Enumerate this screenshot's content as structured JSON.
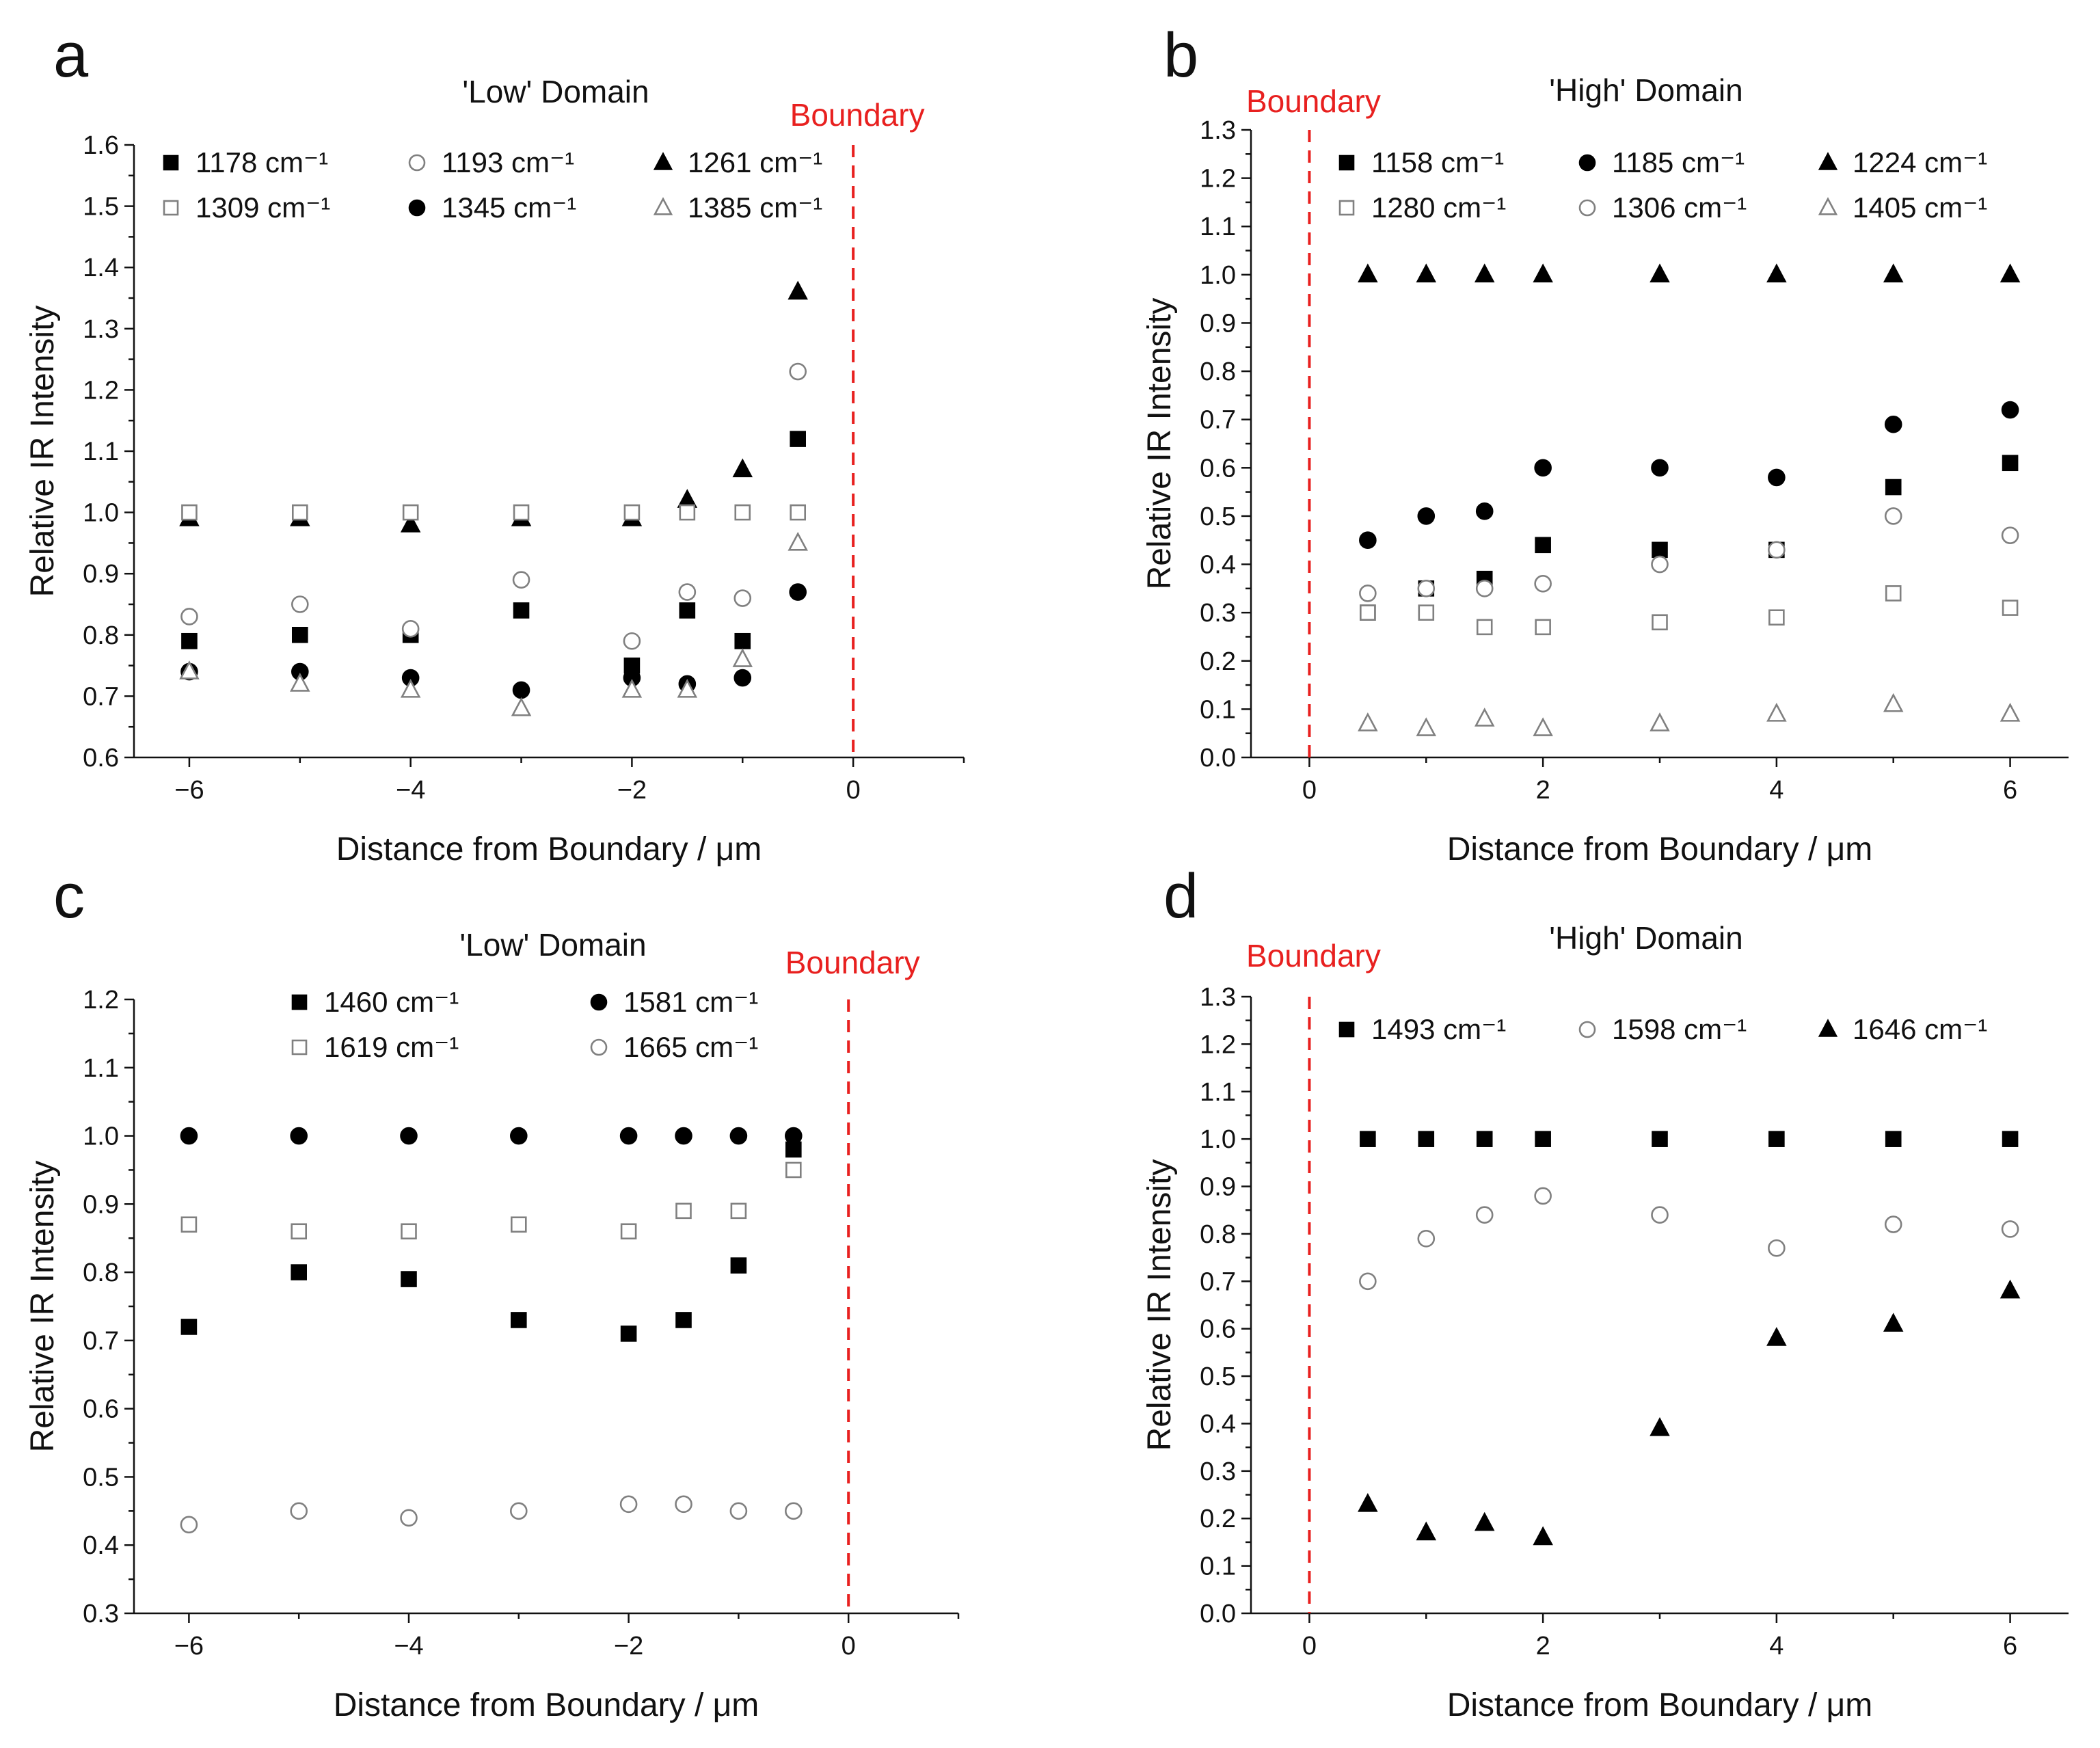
{
  "figure": {
    "colors": {
      "boundary": "#e8201f",
      "filled": "#000000",
      "open": "#808080"
    }
  },
  "chart_data": [
    {
      "type": "scatter",
      "panel": "a",
      "title": "'Low' Domain",
      "boundary_label": "Boundary",
      "boundary_x": 0,
      "xlabel": "Distance from Boundary / μm",
      "ylabel": "Relative IR Intensity",
      "xlim": [
        -6.5,
        1
      ],
      "ylim": [
        0.6,
        1.6
      ],
      "xticks": [
        -6,
        -4,
        -2,
        0
      ],
      "xtick_labels": [
        "−6",
        "−4",
        "−2",
        "0"
      ],
      "xminor_step": 1,
      "yticks": [
        0.6,
        0.7,
        0.8,
        0.9,
        1.0,
        1.1,
        1.2,
        1.3,
        1.4,
        1.5,
        1.6
      ],
      "ytick_labels": [
        "0.6",
        "0.7",
        "0.8",
        "0.9",
        "1.0",
        "1.1",
        "1.2",
        "1.3",
        "1.4",
        "1.5",
        "1.6"
      ],
      "legend_columns": 3,
      "series": [
        {
          "name": "1178 cm⁻¹",
          "marker": "square",
          "fill": "filled",
          "x": [
            -6,
            -5,
            -4,
            -3,
            -2,
            -1.5,
            -1,
            -0.5
          ],
          "y": [
            0.79,
            0.8,
            0.8,
            0.84,
            0.75,
            0.84,
            0.79,
            1.12
          ]
        },
        {
          "name": "1193 cm⁻¹",
          "marker": "circle",
          "fill": "open",
          "x": [
            -6,
            -5,
            -4,
            -3,
            -2,
            -1.5,
            -1,
            -0.5
          ],
          "y": [
            0.83,
            0.85,
            0.81,
            0.89,
            0.79,
            0.87,
            0.86,
            1.23
          ]
        },
        {
          "name": "1261 cm⁻¹",
          "marker": "triangle",
          "fill": "filled",
          "x": [
            -6,
            -5,
            -4,
            -3,
            -2,
            -1.5,
            -1,
            -0.5
          ],
          "y": [
            0.99,
            0.99,
            0.98,
            0.99,
            0.99,
            1.02,
            1.07,
            1.36
          ]
        },
        {
          "name": "1309 cm⁻¹",
          "marker": "square",
          "fill": "open",
          "x": [
            -6,
            -5,
            -4,
            -3,
            -2,
            -1.5,
            -1,
            -0.5
          ],
          "y": [
            1.0,
            1.0,
            1.0,
            1.0,
            1.0,
            1.0,
            1.0,
            1.0
          ]
        },
        {
          "name": "1345 cm⁻¹",
          "marker": "circle",
          "fill": "filled",
          "x": [
            -6,
            -5,
            -4,
            -3,
            -2,
            -1.5,
            -1,
            -0.5
          ],
          "y": [
            0.74,
            0.74,
            0.73,
            0.71,
            0.73,
            0.72,
            0.73,
            0.87
          ]
        },
        {
          "name": "1385 cm⁻¹",
          "marker": "triangle",
          "fill": "open",
          "x": [
            -6,
            -5,
            -4,
            -3,
            -2,
            -1.5,
            -1,
            -0.5
          ],
          "y": [
            0.74,
            0.72,
            0.71,
            0.68,
            0.71,
            0.71,
            0.76,
            0.95
          ]
        }
      ]
    },
    {
      "type": "scatter",
      "panel": "b",
      "title": "'High' Domain",
      "boundary_label": "Boundary",
      "boundary_x": 0,
      "xlabel": "Distance from Boundary / μm",
      "ylabel": "Relative IR Intensity",
      "xlim": [
        -0.5,
        6.5
      ],
      "ylim": [
        0.0,
        1.3
      ],
      "xticks": [
        0,
        2,
        4,
        6
      ],
      "xtick_labels": [
        "0",
        "2",
        "4",
        "6"
      ],
      "xminor_step": 1,
      "yticks": [
        0.0,
        0.1,
        0.2,
        0.3,
        0.4,
        0.5,
        0.6,
        0.7,
        0.8,
        0.9,
        1.0,
        1.1,
        1.2,
        1.3
      ],
      "ytick_labels": [
        "0.0",
        "0.1",
        "0.2",
        "0.3",
        "0.4",
        "0.5",
        "0.6",
        "0.7",
        "0.8",
        "0.9",
        "1.0",
        "1.1",
        "1.2",
        "1.3"
      ],
      "legend_columns": 3,
      "series": [
        {
          "name": "1158 cm⁻¹",
          "marker": "square",
          "fill": "filled",
          "x": [
            0.5,
            1,
            1.5,
            2,
            3,
            4,
            5,
            6
          ],
          "y": [
            0.3,
            0.35,
            0.37,
            0.44,
            0.43,
            0.43,
            0.56,
            0.61
          ]
        },
        {
          "name": "1185 cm⁻¹",
          "marker": "circle",
          "fill": "filled",
          "x": [
            0.5,
            1,
            1.5,
            2,
            3,
            4,
            5,
            6
          ],
          "y": [
            0.45,
            0.5,
            0.51,
            0.6,
            0.6,
            0.58,
            0.69,
            0.72
          ]
        },
        {
          "name": "1224 cm⁻¹",
          "marker": "triangle",
          "fill": "filled",
          "x": [
            0.5,
            1,
            1.5,
            2,
            3,
            4,
            5,
            6
          ],
          "y": [
            1.0,
            1.0,
            1.0,
            1.0,
            1.0,
            1.0,
            1.0,
            1.0
          ]
        },
        {
          "name": "1280 cm⁻¹",
          "marker": "square",
          "fill": "open",
          "x": [
            0.5,
            1,
            1.5,
            2,
            3,
            4,
            5,
            6
          ],
          "y": [
            0.3,
            0.3,
            0.27,
            0.27,
            0.28,
            0.29,
            0.34,
            0.31
          ]
        },
        {
          "name": "1306 cm⁻¹",
          "marker": "circle",
          "fill": "open",
          "x": [
            0.5,
            1,
            1.5,
            2,
            3,
            4,
            5,
            6
          ],
          "y": [
            0.34,
            0.35,
            0.35,
            0.36,
            0.4,
            0.43,
            0.5,
            0.46
          ]
        },
        {
          "name": "1405 cm⁻¹",
          "marker": "triangle",
          "fill": "open",
          "x": [
            0.5,
            1,
            1.5,
            2,
            3,
            4,
            5,
            6
          ],
          "y": [
            0.07,
            0.06,
            0.08,
            0.06,
            0.07,
            0.09,
            0.11,
            0.09
          ]
        }
      ]
    },
    {
      "type": "scatter",
      "panel": "c",
      "title": "'Low' Domain",
      "boundary_label": "Boundary",
      "boundary_x": 0,
      "xlabel": "Distance from Boundary / μm",
      "ylabel": "Relative IR Intensity",
      "xlim": [
        -6.5,
        1
      ],
      "ylim": [
        0.3,
        1.2
      ],
      "xticks": [
        -6,
        -4,
        -2,
        0
      ],
      "xtick_labels": [
        "−6",
        "−4",
        "−2",
        "0"
      ],
      "xminor_step": 1,
      "yticks": [
        0.3,
        0.4,
        0.5,
        0.6,
        0.7,
        0.8,
        0.9,
        1.0,
        1.1,
        1.2
      ],
      "ytick_labels": [
        "0.3",
        "0.4",
        "0.5",
        "0.6",
        "0.7",
        "0.8",
        "0.9",
        "1.0",
        "1.1",
        "1.2"
      ],
      "legend_columns": 2,
      "series": [
        {
          "name": "1460 cm⁻¹",
          "marker": "square",
          "fill": "filled",
          "x": [
            -6,
            -5,
            -4,
            -3,
            -2,
            -1.5,
            -1,
            -0.5
          ],
          "y": [
            0.72,
            0.8,
            0.79,
            0.73,
            0.71,
            0.73,
            0.81,
            0.98
          ]
        },
        {
          "name": "1581 cm⁻¹",
          "marker": "circle",
          "fill": "filled",
          "x": [
            -6,
            -5,
            -4,
            -3,
            -2,
            -1.5,
            -1,
            -0.5
          ],
          "y": [
            1.0,
            1.0,
            1.0,
            1.0,
            1.0,
            1.0,
            1.0,
            1.0
          ]
        },
        {
          "name": "1619 cm⁻¹",
          "marker": "square",
          "fill": "open",
          "x": [
            -6,
            -5,
            -4,
            -3,
            -2,
            -1.5,
            -1,
            -0.5
          ],
          "y": [
            0.87,
            0.86,
            0.86,
            0.87,
            0.86,
            0.89,
            0.89,
            0.95
          ]
        },
        {
          "name": "1665 cm⁻¹",
          "marker": "circle",
          "fill": "open",
          "x": [
            -6,
            -5,
            -4,
            -3,
            -2,
            -1.5,
            -1,
            -0.5
          ],
          "y": [
            0.43,
            0.45,
            0.44,
            0.45,
            0.46,
            0.46,
            0.45,
            0.45
          ]
        }
      ]
    },
    {
      "type": "scatter",
      "panel": "d",
      "title": "'High' Domain",
      "boundary_label": "Boundary",
      "boundary_x": 0,
      "xlabel": "Distance from Boundary / μm",
      "ylabel": "Relative IR Intensity",
      "xlim": [
        -0.5,
        6.5
      ],
      "ylim": [
        0.0,
        1.3
      ],
      "xticks": [
        0,
        2,
        4,
        6
      ],
      "xtick_labels": [
        "0",
        "2",
        "4",
        "6"
      ],
      "xminor_step": 1,
      "yticks": [
        0.0,
        0.1,
        0.2,
        0.3,
        0.4,
        0.5,
        0.6,
        0.7,
        0.8,
        0.9,
        1.0,
        1.1,
        1.2,
        1.3
      ],
      "ytick_labels": [
        "0.0",
        "0.1",
        "0.2",
        "0.3",
        "0.4",
        "0.5",
        "0.6",
        "0.7",
        "0.8",
        "0.9",
        "1.0",
        "1.1",
        "1.2",
        "1.3"
      ],
      "legend_columns": 3,
      "series": [
        {
          "name": "1493 cm⁻¹",
          "marker": "square",
          "fill": "filled",
          "x": [
            0.5,
            1,
            1.5,
            2,
            3,
            4,
            5,
            6
          ],
          "y": [
            1.0,
            1.0,
            1.0,
            1.0,
            1.0,
            1.0,
            1.0,
            1.0
          ]
        },
        {
          "name": "1598 cm⁻¹",
          "marker": "circle",
          "fill": "open",
          "x": [
            0.5,
            1,
            1.5,
            2,
            3,
            4,
            5,
            6
          ],
          "y": [
            0.7,
            0.79,
            0.84,
            0.88,
            0.84,
            0.77,
            0.82,
            0.81
          ]
        },
        {
          "name": "1646 cm⁻¹",
          "marker": "triangle",
          "fill": "filled",
          "x": [
            0.5,
            1,
            1.5,
            2,
            3,
            4,
            5,
            6
          ],
          "y": [
            0.23,
            0.17,
            0.19,
            0.16,
            0.39,
            0.58,
            0.61,
            0.68
          ]
        }
      ]
    }
  ]
}
